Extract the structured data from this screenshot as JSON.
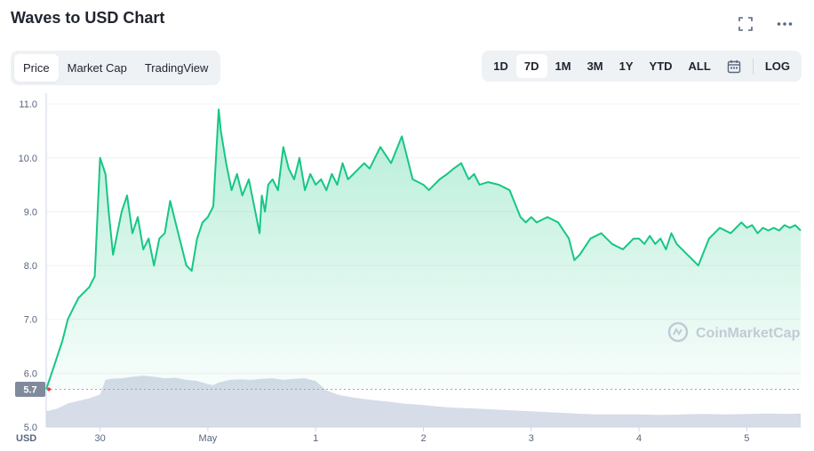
{
  "header": {
    "title": "Waves to USD Chart"
  },
  "icons": {
    "fullscreen": "fullscreen-icon",
    "more": "more-dots-icon",
    "calendar": "calendar-icon",
    "watermark_logo": "coinmarketcap-logo-icon"
  },
  "view_tabs": [
    {
      "label": "Price",
      "active": true
    },
    {
      "label": "Market Cap",
      "active": false
    },
    {
      "label": "TradingView",
      "active": false
    }
  ],
  "ranges": [
    {
      "label": "1D",
      "active": false
    },
    {
      "label": "7D",
      "active": true
    },
    {
      "label": "1M",
      "active": false
    },
    {
      "label": "3M",
      "active": false
    },
    {
      "label": "1Y",
      "active": false
    },
    {
      "label": "YTD",
      "active": false
    },
    {
      "label": "ALL",
      "active": false
    }
  ],
  "log_label": "LOG",
  "watermark": "CoinMarketCap",
  "colors": {
    "line": "#16c784",
    "fill_top": "#16c784",
    "volume": "#cfd6e4",
    "current_badge": "#808a9d"
  },
  "chart_data": {
    "type": "area",
    "title": "Waves to USD Chart",
    "currency_label": "USD",
    "current_price_label": "5.7",
    "current_price": 5.7,
    "ylim": [
      5.0,
      11.2
    ],
    "yticks": [
      "11.0",
      "10.0",
      "9.0",
      "8.0",
      "7.0",
      "6.0",
      "5.0"
    ],
    "ytick_values": [
      11.0,
      10.0,
      9.0,
      8.0,
      7.0,
      6.0,
      5.0
    ],
    "xlim": [
      0,
      7
    ],
    "xticks": [
      "30",
      "May",
      "1",
      "2",
      "3",
      "4",
      "5"
    ],
    "xtick_values": [
      0.5,
      1.5,
      2.5,
      3.5,
      4.5,
      5.5,
      6.5
    ],
    "grid": true,
    "price_series": {
      "name": "Price",
      "x": [
        0.0,
        0.05,
        0.15,
        0.2,
        0.25,
        0.3,
        0.4,
        0.45,
        0.5,
        0.55,
        0.58,
        0.62,
        0.66,
        0.7,
        0.75,
        0.8,
        0.85,
        0.9,
        0.95,
        1.0,
        1.05,
        1.1,
        1.15,
        1.2,
        1.3,
        1.35,
        1.4,
        1.45,
        1.5,
        1.55,
        1.6,
        1.62,
        1.67,
        1.72,
        1.77,
        1.82,
        1.88,
        1.93,
        1.98,
        2.0,
        2.03,
        2.06,
        2.1,
        2.15,
        2.2,
        2.25,
        2.3,
        2.35,
        2.4,
        2.45,
        2.5,
        2.55,
        2.6,
        2.65,
        2.7,
        2.75,
        2.8,
        2.85,
        2.9,
        2.95,
        3.0,
        3.1,
        3.2,
        3.3,
        3.4,
        3.5,
        3.55,
        3.65,
        3.72,
        3.78,
        3.85,
        3.92,
        3.97,
        4.02,
        4.1,
        4.2,
        4.3,
        4.4,
        4.45,
        4.5,
        4.55,
        4.65,
        4.75,
        4.85,
        4.9,
        4.95,
        5.05,
        5.15,
        5.25,
        5.35,
        5.45,
        5.5,
        5.55,
        5.6,
        5.65,
        5.7,
        5.75,
        5.8,
        5.85,
        5.9,
        5.95,
        6.05,
        6.15,
        6.25,
        6.35,
        6.45,
        6.5,
        6.55,
        6.6,
        6.65,
        6.7,
        6.75,
        6.8,
        6.85,
        6.9,
        6.95,
        7.0
      ],
      "values": [
        5.7,
        6.0,
        6.6,
        7.0,
        7.2,
        7.4,
        7.6,
        7.8,
        10.0,
        9.7,
        9.0,
        8.2,
        8.6,
        9.0,
        9.3,
        8.6,
        8.9,
        8.3,
        8.5,
        8.0,
        8.5,
        8.6,
        9.2,
        8.8,
        8.0,
        7.9,
        8.5,
        8.8,
        8.9,
        9.1,
        10.9,
        10.5,
        9.9,
        9.4,
        9.7,
        9.3,
        9.6,
        9.1,
        8.6,
        9.3,
        9.0,
        9.5,
        9.6,
        9.4,
        10.2,
        9.8,
        9.6,
        10.0,
        9.4,
        9.7,
        9.5,
        9.6,
        9.4,
        9.7,
        9.5,
        9.9,
        9.6,
        9.7,
        9.8,
        9.9,
        9.8,
        10.2,
        9.9,
        10.4,
        9.6,
        9.5,
        9.4,
        9.6,
        9.7,
        9.8,
        9.9,
        9.6,
        9.7,
        9.5,
        9.55,
        9.5,
        9.4,
        8.9,
        8.8,
        8.9,
        8.8,
        8.9,
        8.8,
        8.5,
        8.1,
        8.2,
        8.5,
        8.6,
        8.4,
        8.3,
        8.5,
        8.5,
        8.4,
        8.55,
        8.4,
        8.5,
        8.3,
        8.6,
        8.4,
        8.3,
        8.2,
        8.0,
        8.5,
        8.7,
        8.6,
        8.8,
        8.7,
        8.75,
        8.6,
        8.7,
        8.65,
        8.7,
        8.65,
        8.75,
        8.7,
        8.75,
        8.65
      ]
    },
    "volume_series": {
      "name": "Volume",
      "x": [
        0.0,
        0.1,
        0.2,
        0.3,
        0.4,
        0.5,
        0.55,
        0.6,
        0.7,
        0.8,
        0.9,
        1.0,
        1.1,
        1.2,
        1.3,
        1.4,
        1.5,
        1.55,
        1.6,
        1.7,
        1.8,
        1.9,
        2.0,
        2.1,
        2.2,
        2.3,
        2.4,
        2.5,
        2.6,
        2.7,
        2.8,
        2.9,
        3.0,
        3.1,
        3.2,
        3.3,
        3.5,
        3.7,
        3.9,
        4.1,
        4.3,
        4.5,
        4.7,
        4.9,
        5.1,
        5.3,
        5.5,
        5.7,
        5.9,
        6.1,
        6.3,
        6.5,
        6.7,
        6.9,
        7.0
      ],
      "values": [
        0.3,
        0.35,
        0.45,
        0.5,
        0.55,
        0.62,
        0.9,
        0.92,
        0.93,
        0.96,
        0.98,
        0.96,
        0.93,
        0.94,
        0.9,
        0.88,
        0.82,
        0.8,
        0.85,
        0.9,
        0.91,
        0.9,
        0.92,
        0.93,
        0.9,
        0.92,
        0.93,
        0.88,
        0.7,
        0.62,
        0.58,
        0.55,
        0.52,
        0.5,
        0.48,
        0.45,
        0.42,
        0.38,
        0.36,
        0.34,
        0.32,
        0.3,
        0.28,
        0.26,
        0.24,
        0.24,
        0.24,
        0.23,
        0.24,
        0.25,
        0.24,
        0.25,
        0.26,
        0.25,
        0.26
      ]
    }
  }
}
